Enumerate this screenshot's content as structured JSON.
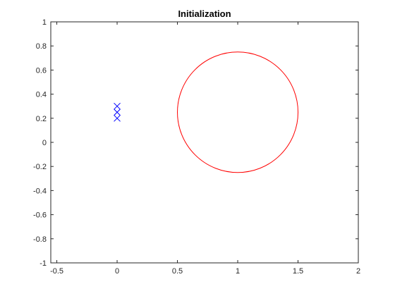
{
  "chart_data": {
    "type": "scatter",
    "title": "Initialization",
    "xlabel": "",
    "ylabel": "",
    "xlim": [
      -0.55,
      2.0
    ],
    "ylim": [
      -1.0,
      1.0
    ],
    "xticks": [
      -0.5,
      0,
      0.5,
      1,
      1.5,
      2
    ],
    "xtick_labels": [
      "-0.5",
      "0",
      "0.5",
      "1",
      "1.5",
      "2"
    ],
    "yticks": [
      -1,
      -0.8,
      -0.6,
      -0.4,
      -0.2,
      0,
      0.2,
      0.4,
      0.6,
      0.8,
      1
    ],
    "ytick_labels": [
      "-1",
      "-0.8",
      "-0.6",
      "-0.4",
      "-0.2",
      "0",
      "0.2",
      "0.4",
      "0.6",
      "0.8",
      "1"
    ],
    "grid": false,
    "series": [
      {
        "marker": "x",
        "color": "#0000ff",
        "points": [
          {
            "x": 0,
            "y": 0.2
          },
          {
            "x": 0,
            "y": 0.25
          },
          {
            "x": 0,
            "y": 0.3
          }
        ]
      }
    ],
    "shapes": [
      {
        "shape": "circle",
        "center": [
          1.0,
          0.25
        ],
        "radius": 0.5,
        "color": "#ff0000"
      }
    ]
  }
}
